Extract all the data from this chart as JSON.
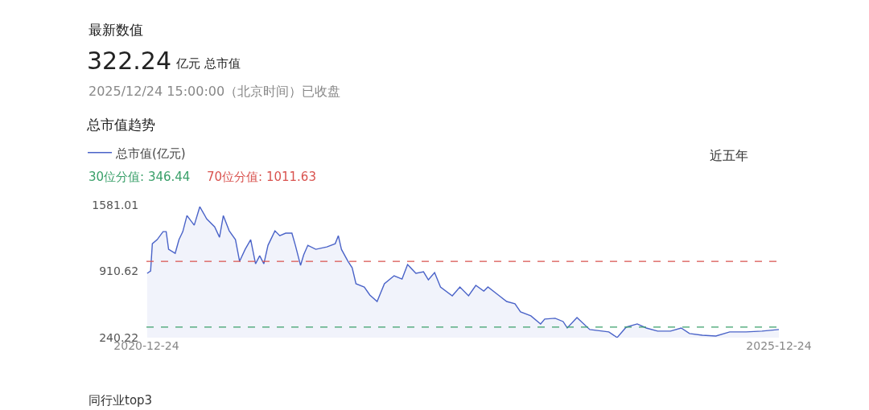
{
  "chart_data": {
    "type": "area",
    "title": "总市值趋势",
    "annotations": [
      "最新数值",
      "322.24",
      "亿元 总市值",
      "2025/12/24 15:00:00（北京时间）已收盘",
      "近五年",
      "同行业top3"
    ],
    "x": [
      "2020-12-26",
      "2021-01-05",
      "2021-01-10",
      "2021-01-24",
      "2021-02-10",
      "2021-02-19",
      "2021-02-26",
      "2021-03-17",
      "2021-03-28",
      "2021-04-08",
      "2021-04-20",
      "2021-05-11",
      "2021-05-27",
      "2021-06-16",
      "2021-07-09",
      "2021-07-23",
      "2021-08-03",
      "2021-08-20",
      "2021-09-07",
      "2021-09-19",
      "2021-10-05",
      "2021-10-21",
      "2021-11-04",
      "2021-11-16",
      "2021-11-28",
      "2021-12-10",
      "2021-12-30",
      "2022-01-13",
      "2022-01-30",
      "2022-02-17",
      "2022-02-27",
      "2022-03-14",
      "2022-03-23",
      "2022-04-04",
      "2022-04-27",
      "2022-05-29",
      "2022-06-22",
      "2022-07-01",
      "2022-07-10",
      "2022-07-29",
      "2022-08-10",
      "2022-08-21",
      "2022-09-14",
      "2022-09-30",
      "2022-10-21",
      "2022-11-11",
      "2022-12-09",
      "2023-01-01",
      "2023-01-17",
      "2023-02-10",
      "2023-03-04",
      "2023-03-18",
      "2023-04-05",
      "2023-04-22",
      "2023-05-26",
      "2023-06-17",
      "2023-07-12",
      "2023-08-02",
      "2023-08-25",
      "2023-09-06",
      "2023-10-06",
      "2023-10-30",
      "2023-11-23",
      "2023-12-09",
      "2024-01-08",
      "2024-02-05",
      "2024-02-17",
      "2024-03-18",
      "2024-04-10",
      "2024-04-22",
      "2024-05-20",
      "2024-06-26",
      "2024-08-20",
      "2024-09-13",
      "2024-10-09",
      "2024-11-10",
      "2024-12-06",
      "2025-01-08",
      "2025-02-14",
      "2025-03-17",
      "2025-04-10",
      "2025-05-17",
      "2025-06-25",
      "2025-08-04",
      "2025-09-20",
      "2025-11-05",
      "2025-12-24"
    ],
    "series": [
      {
        "name": "总市值(亿元)",
        "color": "#4a63c8",
        "values": [
          890,
          914,
          1190,
          1231,
          1312,
          1312,
          1133,
          1093,
          1231,
          1312,
          1474,
          1377,
          1563,
          1441,
          1360,
          1255,
          1474,
          1320,
          1231,
          1012,
          1133,
          1231,
          987,
          1068,
          987,
          1174,
          1320,
          1271,
          1296,
          1296,
          1174,
          971,
          1077,
          1174,
          1133,
          1158,
          1190,
          1271,
          1133,
          1012,
          947,
          785,
          752,
          671,
          606,
          785,
          866,
          833,
          979,
          890,
          906,
          825,
          898,
          752,
          663,
          752,
          663,
          768,
          711,
          752,
          671,
          606,
          582,
          501,
          460,
          379,
          428,
          436,
          403,
          338,
          444,
          322,
          298,
          241,
          346,
          379,
          338,
          306,
          306,
          338,
          282,
          265,
          257,
          298,
          298,
          306,
          322.24
        ]
      }
    ],
    "xlim": [
      "2020-12-24",
      "2025-12-24"
    ],
    "xticks": [
      {
        "value": "2020-12-24",
        "label": "2020-12-24"
      },
      {
        "value": "2025-12-24",
        "label": "2025-12-24"
      }
    ],
    "ylim": [
      240.22,
      1581.01
    ],
    "yticks": [
      240.22,
      910.62,
      1581.01
    ],
    "ref_lines": [
      {
        "axis": "y",
        "value": 346.44,
        "label": "30位分值: 346.44",
        "color": "#3aa06a",
        "line_style": "dashed"
      },
      {
        "axis": "y",
        "value": 1011.63,
        "label": "70位分值: 1011.63",
        "color": "#d9534f",
        "line_style": "dashed"
      }
    ],
    "legend": "top left"
  }
}
